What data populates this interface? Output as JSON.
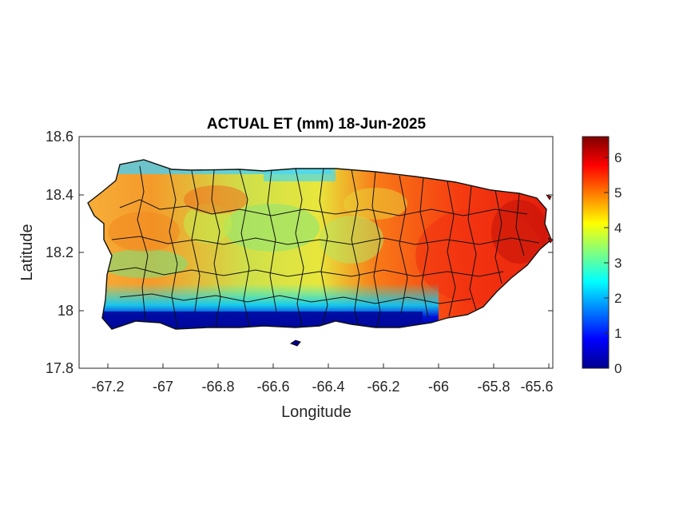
{
  "title": "ACTUAL ET (mm) 18-Jun-2025",
  "xlabel": "Longitude",
  "ylabel": "Latitude",
  "x_ticks": [
    "-67.2",
    "-67",
    "-66.8",
    "-66.6",
    "-66.4",
    "-66.2",
    "-66",
    "-65.8",
    "-65.6"
  ],
  "y_ticks": [
    "18.6",
    "18.4",
    "18.2",
    "18",
    "17.8"
  ],
  "colorbar": {
    "ticks": [
      "0",
      "1",
      "2",
      "3",
      "4",
      "5",
      "6"
    ],
    "range": [
      0,
      6.6
    ],
    "colormap": "jet"
  },
  "map": {
    "xlim": [
      -67.3,
      -65.58
    ],
    "ylim": [
      17.8,
      18.6
    ],
    "region": "Puerto Rico",
    "municipal_boundaries": true,
    "outline_color": "#111111",
    "ocean_color": "#ffffff"
  }
}
